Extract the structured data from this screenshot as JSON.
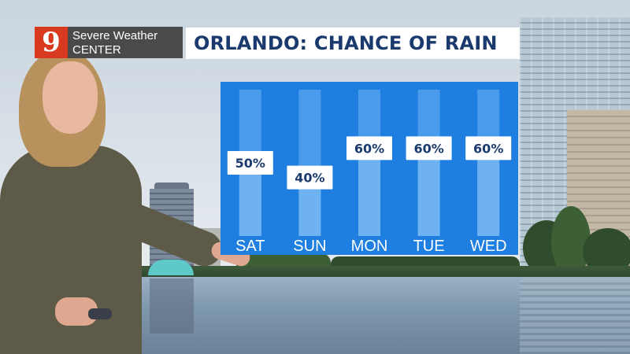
{
  "logo": {
    "badge": "9",
    "line1": "Severe Weather",
    "line2": "CENTER"
  },
  "title": "ORLANDO: CHANCE OF RAIN",
  "colors": {
    "panel": "#1f7fe0",
    "bar_track": "#4a9bec",
    "bar_fill": "#6eb2f2",
    "value_box": "#ffffff",
    "value_text": "#1a3a6e",
    "day_text": "#ffffff",
    "title_text": "#1a3a6e",
    "logo_badge": "#d73a1e"
  },
  "chart_data": {
    "type": "bar",
    "title": "ORLANDO: CHANCE OF RAIN",
    "categories": [
      "SAT",
      "SUN",
      "MON",
      "TUE",
      "WED"
    ],
    "values": [
      50,
      40,
      60,
      60,
      60
    ],
    "labels": [
      "50%",
      "40%",
      "60%",
      "60%",
      "60%"
    ],
    "ylim": [
      0,
      100
    ],
    "grid": false,
    "legend": "none"
  }
}
